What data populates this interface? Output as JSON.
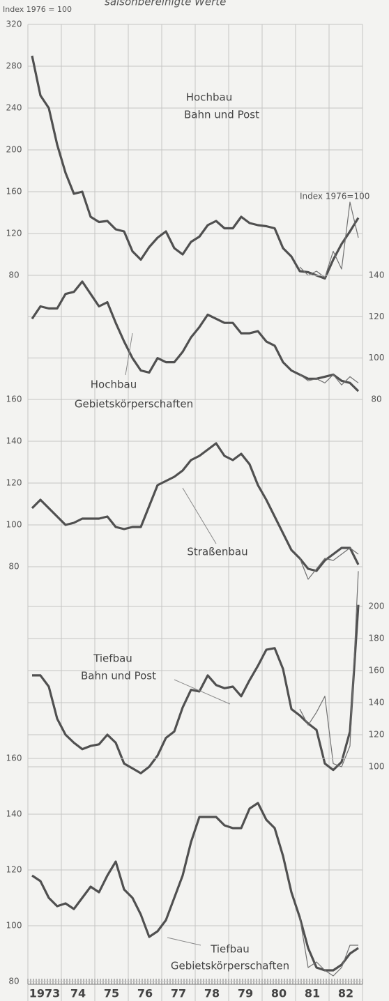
{
  "subtitle": "saisonbereinigte Werte",
  "index_note": "Index 1976 = 100",
  "chart_data": [
    {
      "type": "line",
      "axis_side": "left",
      "xlim": [
        1973,
        1983
      ],
      "ylim": [
        80,
        320
      ],
      "yticks": [
        80,
        120,
        160,
        200,
        240,
        280,
        320
      ],
      "x": [
        1973.125,
        1973.375,
        1973.625,
        1973.875,
        1974.125,
        1974.375,
        1974.625,
        1974.875,
        1975.125,
        1975.375,
        1975.625,
        1975.875,
        1976.125,
        1976.375,
        1976.625,
        1976.875,
        1977.125,
        1977.375,
        1977.625,
        1977.875,
        1978.125,
        1978.375,
        1978.625,
        1978.875,
        1979.125,
        1979.375,
        1979.625,
        1979.875,
        1980.125,
        1980.375,
        1980.625,
        1980.875,
        1981.125,
        1981.375,
        1981.625,
        1981.875,
        1982.125,
        1982.375,
        1982.625,
        1982.875
      ],
      "series": [
        {
          "name": [
            "Hochbau",
            "Bahn und Post"
          ],
          "color": "#505050",
          "values": [
            290,
            252,
            240,
            205,
            178,
            158,
            160,
            136,
            131,
            132,
            124,
            122,
            103,
            95,
            107,
            116,
            122,
            106,
            100,
            112,
            117,
            128,
            132,
            125,
            125,
            136,
            130,
            128,
            127,
            125,
            106,
            98,
            84,
            83,
            80,
            77,
            95,
            110,
            122,
            135
          ]
        },
        {
          "color": "#707070",
          "values": [
            null,
            null,
            null,
            null,
            null,
            null,
            null,
            null,
            null,
            null,
            null,
            null,
            null,
            null,
            null,
            null,
            null,
            null,
            null,
            null,
            null,
            null,
            null,
            null,
            null,
            null,
            null,
            null,
            null,
            null,
            null,
            null,
            88,
            80,
            84,
            78,
            103,
            86,
            150,
            116
          ]
        }
      ]
    },
    {
      "type": "line",
      "axis_side": "right",
      "ylabel": "Index 1976=100",
      "xlim": [
        1973,
        1983
      ],
      "ylim": [
        80,
        140
      ],
      "yticks": [
        80,
        100,
        120,
        140
      ],
      "x": [
        1973.125,
        1973.375,
        1973.625,
        1973.875,
        1974.125,
        1974.375,
        1974.625,
        1974.875,
        1975.125,
        1975.375,
        1975.625,
        1975.875,
        1976.125,
        1976.375,
        1976.625,
        1976.875,
        1977.125,
        1977.375,
        1977.625,
        1977.875,
        1978.125,
        1978.375,
        1978.625,
        1978.875,
        1979.125,
        1979.375,
        1979.625,
        1979.875,
        1980.125,
        1980.375,
        1980.625,
        1980.875,
        1981.125,
        1981.375,
        1981.625,
        1981.875,
        1982.125,
        1982.375,
        1982.625,
        1982.875
      ],
      "series": [
        {
          "name": [
            "Hochbau",
            "Gebietskörperschaften"
          ],
          "color": "#505050",
          "values": [
            119,
            125,
            124,
            124,
            131,
            132,
            137,
            131,
            125,
            127,
            117,
            108,
            100,
            94,
            93,
            100,
            98,
            98,
            103,
            110,
            115,
            121,
            119,
            117,
            117,
            112,
            112,
            113,
            108,
            106,
            98,
            94,
            92,
            90,
            90,
            91,
            92,
            89,
            88,
            84
          ]
        },
        {
          "color": "#707070",
          "values": [
            null,
            null,
            null,
            null,
            null,
            null,
            null,
            null,
            null,
            null,
            null,
            null,
            null,
            null,
            null,
            null,
            null,
            null,
            null,
            null,
            null,
            null,
            null,
            null,
            null,
            null,
            null,
            null,
            null,
            null,
            null,
            null,
            92,
            89,
            90,
            88,
            92,
            87,
            91,
            88
          ]
        }
      ]
    },
    {
      "type": "line",
      "axis_side": "left",
      "xlim": [
        1973,
        1983
      ],
      "ylim": [
        80,
        160
      ],
      "yticks": [
        80,
        100,
        120,
        140,
        160
      ],
      "x": [
        1973.125,
        1973.375,
        1973.625,
        1973.875,
        1974.125,
        1974.375,
        1974.625,
        1974.875,
        1975.125,
        1975.375,
        1975.625,
        1975.875,
        1976.125,
        1976.375,
        1976.625,
        1976.875,
        1977.125,
        1977.375,
        1977.625,
        1977.875,
        1978.125,
        1978.375,
        1978.625,
        1978.875,
        1979.125,
        1979.375,
        1979.625,
        1979.875,
        1980.125,
        1980.375,
        1980.625,
        1980.875,
        1981.125,
        1981.375,
        1981.625,
        1981.875,
        1982.125,
        1982.375,
        1982.625,
        1982.875
      ],
      "series": [
        {
          "name": [
            "Straßenbau"
          ],
          "color": "#505050",
          "values": [
            108,
            112,
            108,
            104,
            100,
            101,
            103,
            103,
            103,
            104,
            99,
            98,
            99,
            99,
            109,
            119,
            121,
            123,
            126,
            131,
            133,
            136,
            139,
            133,
            131,
            134,
            129,
            119,
            112,
            104,
            96,
            88,
            84,
            79,
            78,
            83,
            86,
            89,
            89,
            81
          ]
        },
        {
          "color": "#707070",
          "values": [
            null,
            null,
            null,
            null,
            null,
            null,
            null,
            null,
            null,
            null,
            null,
            null,
            null,
            null,
            null,
            null,
            null,
            null,
            null,
            null,
            null,
            null,
            null,
            null,
            null,
            null,
            null,
            null,
            null,
            null,
            null,
            null,
            84,
            74,
            79,
            84,
            83,
            86,
            89,
            86
          ]
        }
      ]
    },
    {
      "type": "line",
      "axis_side": "right",
      "xlim": [
        1973,
        1983
      ],
      "ylim": [
        100,
        200
      ],
      "yticks": [
        100,
        120,
        140,
        160,
        180,
        200
      ],
      "x": [
        1973.125,
        1973.375,
        1973.625,
        1973.875,
        1974.125,
        1974.375,
        1974.625,
        1974.875,
        1975.125,
        1975.375,
        1975.625,
        1975.875,
        1976.125,
        1976.375,
        1976.625,
        1976.875,
        1977.125,
        1977.375,
        1977.625,
        1977.875,
        1978.125,
        1978.375,
        1978.625,
        1978.875,
        1979.125,
        1979.375,
        1979.625,
        1979.875,
        1980.125,
        1980.375,
        1980.625,
        1980.875,
        1981.125,
        1981.375,
        1981.625,
        1981.875,
        1982.125,
        1982.375,
        1982.625,
        1982.875
      ],
      "series": [
        {
          "name": [
            "Tiefbau",
            "Bahn und Post"
          ],
          "color": "#505050",
          "values": [
            157,
            157,
            150,
            130,
            120,
            115,
            111,
            113,
            114,
            120,
            115,
            102,
            99,
            96,
            100,
            107,
            118,
            122,
            137,
            148,
            147,
            157,
            151,
            149,
            150,
            144,
            154,
            163,
            173,
            174,
            161,
            136,
            132,
            127,
            123,
            102,
            98,
            103,
            122,
            201
          ]
        },
        {
          "color": "#707070",
          "values": [
            null,
            null,
            null,
            null,
            null,
            null,
            null,
            null,
            null,
            null,
            null,
            null,
            null,
            null,
            null,
            null,
            null,
            null,
            null,
            null,
            null,
            null,
            null,
            null,
            null,
            null,
            null,
            null,
            null,
            null,
            null,
            null,
            136,
            126,
            134,
            144,
            102,
            100,
            113,
            222
          ]
        }
      ]
    },
    {
      "type": "line",
      "axis_side": "left",
      "xlim": [
        1973,
        1983
      ],
      "ylim": [
        80,
        160
      ],
      "yticks": [
        80,
        100,
        120,
        140,
        160
      ],
      "xticks": [
        {
          "value": 1973.5,
          "label": "1973"
        },
        {
          "value": 1974.5,
          "label": "74"
        },
        {
          "value": 1975.5,
          "label": "75"
        },
        {
          "value": 1976.5,
          "label": "76"
        },
        {
          "value": 1977.5,
          "label": "77"
        },
        {
          "value": 1978.5,
          "label": "78"
        },
        {
          "value": 1979.5,
          "label": "79"
        },
        {
          "value": 1980.5,
          "label": "80"
        },
        {
          "value": 1981.5,
          "label": "81"
        },
        {
          "value": 1982.5,
          "label": "82"
        }
      ],
      "x": [
        1973.125,
        1973.375,
        1973.625,
        1973.875,
        1974.125,
        1974.375,
        1974.625,
        1974.875,
        1975.125,
        1975.375,
        1975.625,
        1975.875,
        1976.125,
        1976.375,
        1976.625,
        1976.875,
        1977.125,
        1977.375,
        1977.625,
        1977.875,
        1978.125,
        1978.375,
        1978.625,
        1978.875,
        1979.125,
        1979.375,
        1979.625,
        1979.875,
        1980.125,
        1980.375,
        1980.625,
        1980.875,
        1981.125,
        1981.375,
        1981.625,
        1981.875,
        1982.125,
        1982.375,
        1982.625,
        1982.875
      ],
      "series": [
        {
          "name": [
            "Tiefbau",
            "Gebietskörperschaften"
          ],
          "color": "#505050",
          "values": [
            118,
            116,
            110,
            107,
            108,
            106,
            110,
            114,
            112,
            118,
            123,
            113,
            110,
            104,
            96,
            98,
            102,
            110,
            118,
            130,
            139,
            139,
            139,
            136,
            135,
            135,
            142,
            144,
            138,
            135,
            125,
            112,
            103,
            92,
            85,
            84,
            84,
            86,
            90,
            92
          ]
        },
        {
          "color": "#707070",
          "values": [
            null,
            null,
            null,
            null,
            null,
            null,
            null,
            null,
            null,
            null,
            null,
            null,
            null,
            null,
            null,
            null,
            null,
            null,
            null,
            null,
            null,
            null,
            null,
            null,
            null,
            null,
            null,
            null,
            null,
            null,
            null,
            null,
            103,
            85,
            87,
            84,
            82,
            85,
            93,
            93
          ]
        }
      ]
    }
  ]
}
